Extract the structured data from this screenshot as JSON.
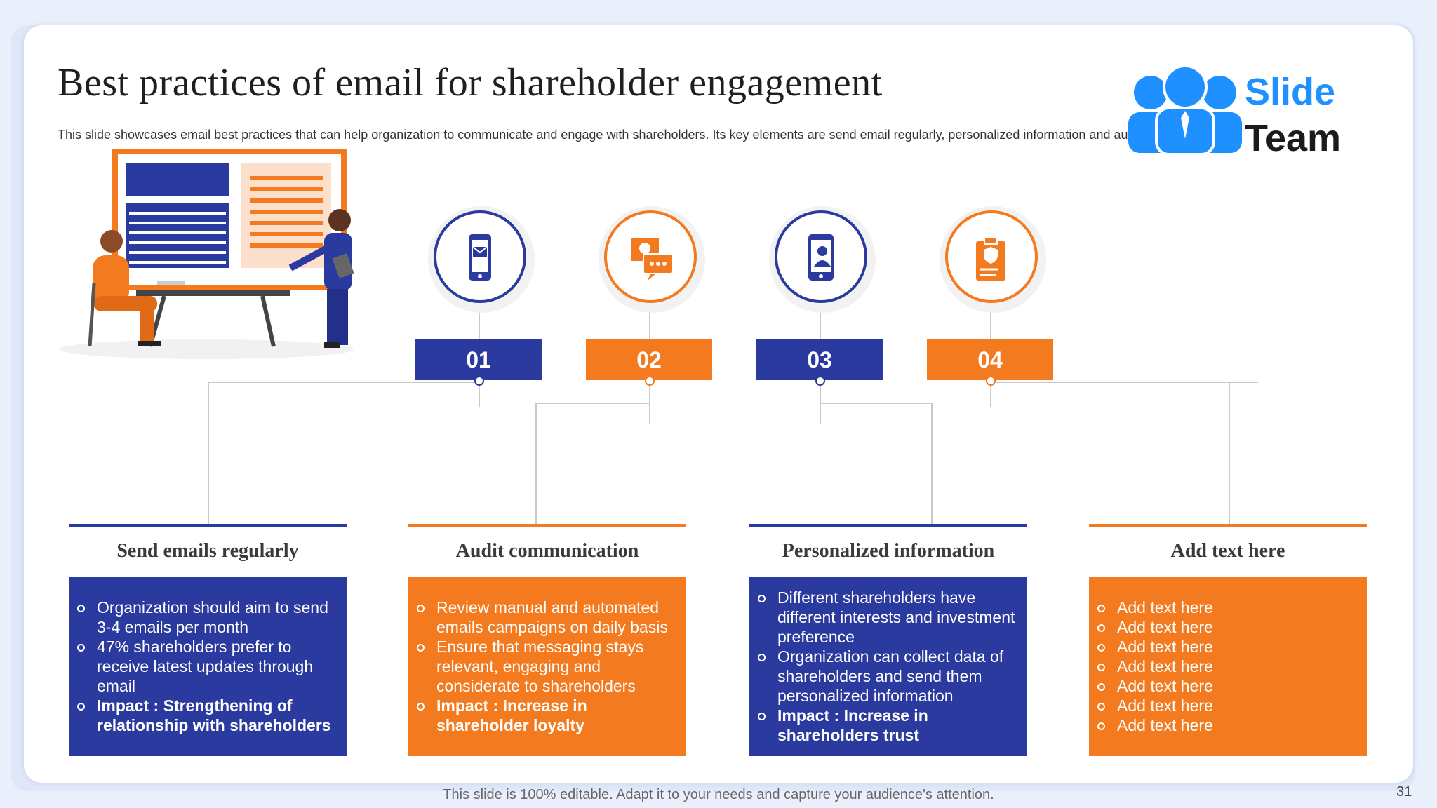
{
  "title": "Best practices of  email for shareholder engagement",
  "subtitle": "This slide showcases email best practices that can help organization to communicate and engage with shareholders. Its key elements are send email regularly, personalized information and audit communication",
  "logo": {
    "line1": "Slide",
    "line2": "Team"
  },
  "steps": [
    {
      "num": "01",
      "icon": "phone-mail-icon",
      "color": "#2b3a9f"
    },
    {
      "num": "02",
      "icon": "chat-report-icon",
      "color": "#f47a1f"
    },
    {
      "num": "03",
      "icon": "phone-profile-icon",
      "color": "#2b3a9f"
    },
    {
      "num": "04",
      "icon": "clipboard-shield-icon",
      "color": "#f47a1f"
    }
  ],
  "cards": [
    {
      "title": "Send emails regularly",
      "items": [
        "Organization should aim to send 3-4 emails per month",
        "47% shareholders prefer to receive latest updates through email",
        "Impact : Strengthening of relationship with shareholders"
      ]
    },
    {
      "title": "Audit communication",
      "items": [
        "Review manual and automated emails campaigns on daily basis",
        "Ensure that messaging stays relevant, engaging and considerate to shareholders",
        "Impact : Increase in shareholder loyalty"
      ]
    },
    {
      "title": "Personalized information",
      "items": [
        "Different shareholders have different interests and investment preference",
        "Organization can collect data of shareholders and send them personalized information",
        "Impact : Increase in shareholders trust"
      ]
    },
    {
      "title": "Add text here",
      "items": [
        "Add text here",
        "Add text here",
        "Add text here",
        "Add text here",
        "Add text here",
        "Add text here",
        "Add text here"
      ]
    }
  ],
  "footer": "This slide is 100% editable. Adapt it to your needs and capture your audience's attention.",
  "page_number": "31"
}
